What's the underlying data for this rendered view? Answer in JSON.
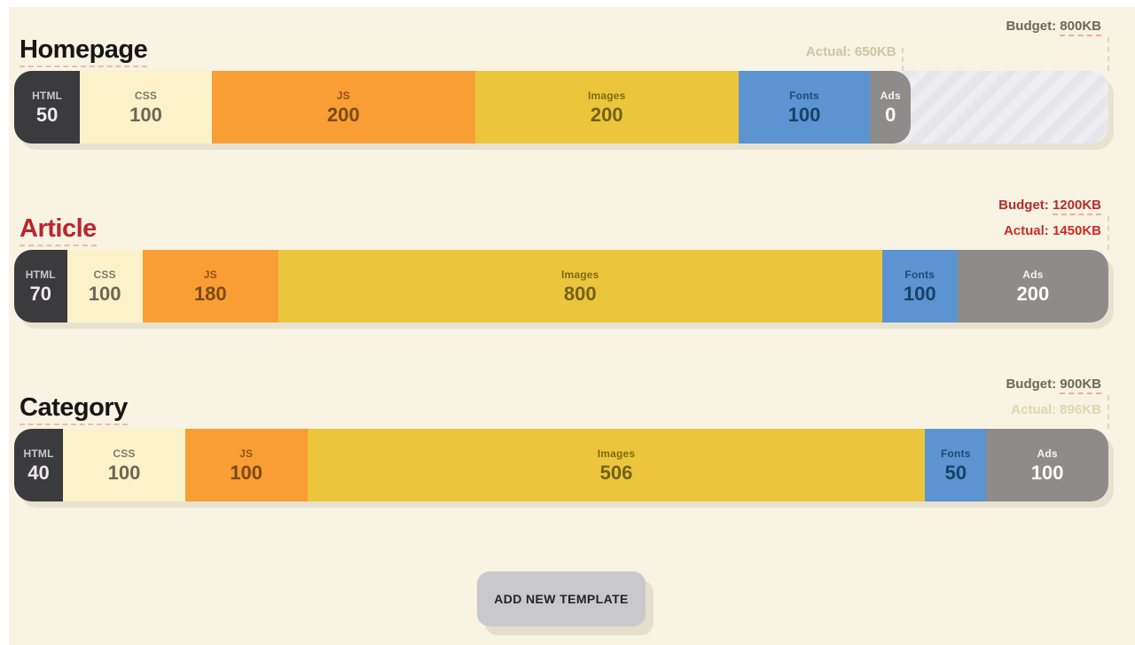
{
  "page": {
    "background": "#f8f3e2",
    "add_button_label": "ADD NEW TEMPLATE"
  },
  "palette": {
    "HTML": {
      "bg": "#3b3a3d",
      "label": "#c9c7c7",
      "value": "#eceaea"
    },
    "CSS": {
      "bg": "#fbf2c9",
      "label": "#81796a",
      "value": "#6e6755"
    },
    "JS": {
      "bg": "#f99e35",
      "label": "#8f5414",
      "value": "#7d4a11"
    },
    "Images": {
      "bg": "#ebc63c",
      "label": "#7d6915",
      "value": "#746018"
    },
    "Fonts": {
      "bg": "#5b94d0",
      "label": "#204a73",
      "value": "#1b4066"
    },
    "Ads": {
      "bg": "#8e8b8b",
      "label": "#f4f3f3",
      "value": "#fdfdfd"
    }
  },
  "templates": [
    {
      "title": "Homepage",
      "title_color": "#161616",
      "budget_kb": 800,
      "actual_kb": 650,
      "budget": {
        "label": "Budget:",
        "value": "800KB",
        "color": "#6e6759"
      },
      "actual": {
        "label": "Actual:",
        "value": "650KB",
        "color": "#cdc6a0"
      },
      "segments": [
        {
          "name": "HTML",
          "value": 50
        },
        {
          "name": "CSS",
          "value": 100
        },
        {
          "name": "JS",
          "value": 200
        },
        {
          "name": "Images",
          "value": 200
        },
        {
          "name": "Fonts",
          "value": 100
        },
        {
          "name": "Ads",
          "value": 0
        }
      ]
    },
    {
      "title": "Article",
      "title_color": "#bd2430",
      "budget_kb": 1200,
      "actual_kb": 1450,
      "budget": {
        "label": "Budget:",
        "value": "1200KB",
        "color": "#b92b2c"
      },
      "actual": {
        "label": "Actual:",
        "value": "1450KB",
        "color": "#cb2d28"
      },
      "segments": [
        {
          "name": "HTML",
          "value": 70
        },
        {
          "name": "CSS",
          "value": 100
        },
        {
          "name": "JS",
          "value": 180
        },
        {
          "name": "Images",
          "value": 800
        },
        {
          "name": "Fonts",
          "value": 100
        },
        {
          "name": "Ads",
          "value": 200
        }
      ]
    },
    {
      "title": "Category",
      "title_color": "#161616",
      "budget_kb": 900,
      "actual_kb": 896,
      "budget": {
        "label": "Budget:",
        "value": "900KB",
        "color": "#6e6759"
      },
      "actual": {
        "label": "Actual:",
        "value": "896KB",
        "color": "#ded7ab"
      },
      "segments": [
        {
          "name": "HTML",
          "value": 40
        },
        {
          "name": "CSS",
          "value": 100
        },
        {
          "name": "JS",
          "value": 100
        },
        {
          "name": "Images",
          "value": 506
        },
        {
          "name": "Fonts",
          "value": 50
        },
        {
          "name": "Ads",
          "value": 100
        }
      ]
    }
  ]
}
